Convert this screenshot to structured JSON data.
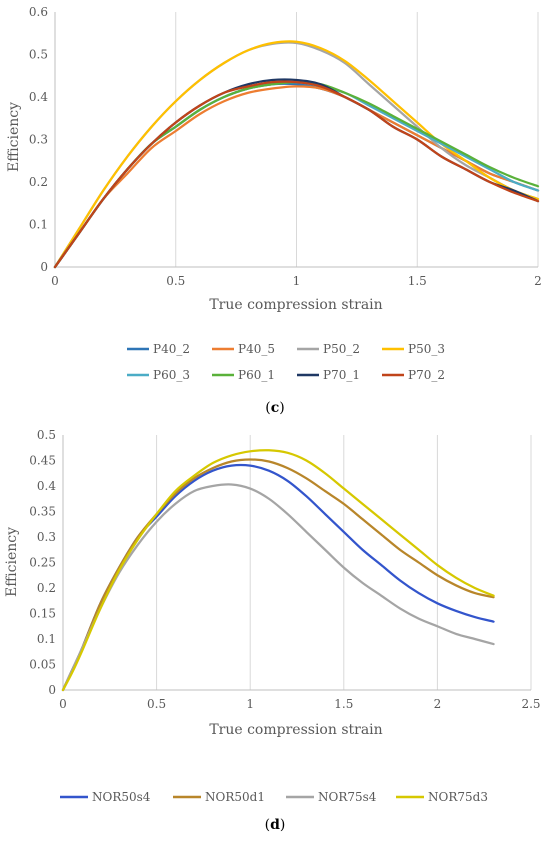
{
  "chart_data": [
    {
      "type": "line",
      "panel": "c",
      "xlabel": "True compression strain",
      "ylabel": "Efficiency",
      "xlim": [
        0,
        2
      ],
      "ylim": [
        0,
        0.6
      ],
      "xticks": [
        "0",
        "0.5",
        "1",
        "1.5",
        "2"
      ],
      "yticks": [
        "0",
        "0.1",
        "0.2",
        "0.3",
        "0.4",
        "0.5",
        "0.6"
      ],
      "grid": "vertical",
      "legend_position": "bottom",
      "x": [
        0,
        0.05,
        0.1,
        0.2,
        0.3,
        0.4,
        0.5,
        0.6,
        0.7,
        0.8,
        0.9,
        1.0,
        1.1,
        1.2,
        1.3,
        1.4,
        1.5,
        1.6,
        1.7,
        1.8,
        1.9,
        2.0
      ],
      "series": [
        {
          "name": "P40_2",
          "color": "#2E75B6",
          "values": [
            0,
            0.04,
            0.08,
            0.16,
            0.23,
            0.29,
            0.33,
            0.37,
            0.4,
            0.42,
            0.43,
            0.43,
            0.42,
            0.4,
            0.37,
            0.34,
            0.31,
            0.28,
            0.25,
            0.22,
            0.2,
            0.18
          ]
        },
        {
          "name": "P40_5",
          "color": "#ED7D31",
          "values": [
            0,
            0.04,
            0.08,
            0.16,
            0.22,
            0.28,
            0.32,
            0.36,
            0.39,
            0.41,
            0.42,
            0.425,
            0.42,
            0.4,
            0.37,
            0.34,
            0.31,
            0.28,
            0.25,
            0.22,
            0.2,
            0.18
          ]
        },
        {
          "name": "P50_2",
          "color": "#A5A5A5",
          "values": [
            0,
            0.045,
            0.09,
            0.18,
            0.26,
            0.33,
            0.39,
            0.44,
            0.48,
            0.51,
            0.525,
            0.527,
            0.51,
            0.48,
            0.43,
            0.38,
            0.33,
            0.28,
            0.24,
            0.21,
            0.18,
            0.16
          ]
        },
        {
          "name": "P50_3",
          "color": "#FFC000",
          "values": [
            0,
            0.045,
            0.09,
            0.18,
            0.26,
            0.33,
            0.39,
            0.44,
            0.48,
            0.51,
            0.527,
            0.53,
            0.515,
            0.485,
            0.44,
            0.39,
            0.34,
            0.29,
            0.25,
            0.21,
            0.18,
            0.16
          ]
        },
        {
          "name": "P60_3",
          "color": "#4BACC6",
          "values": [
            0,
            0.04,
            0.08,
            0.16,
            0.23,
            0.29,
            0.33,
            0.37,
            0.4,
            0.42,
            0.43,
            0.435,
            0.425,
            0.41,
            0.38,
            0.35,
            0.32,
            0.29,
            0.26,
            0.23,
            0.2,
            0.18
          ]
        },
        {
          "name": "P60_1",
          "color": "#5AB13A",
          "values": [
            0,
            0.04,
            0.08,
            0.16,
            0.23,
            0.29,
            0.33,
            0.37,
            0.4,
            0.42,
            0.43,
            0.435,
            0.43,
            0.41,
            0.385,
            0.355,
            0.325,
            0.295,
            0.265,
            0.235,
            0.21,
            0.19
          ]
        },
        {
          "name": "P70_1",
          "color": "#1F3864",
          "values": [
            0,
            0.04,
            0.08,
            0.16,
            0.23,
            0.29,
            0.34,
            0.38,
            0.41,
            0.43,
            0.44,
            0.44,
            0.43,
            0.4,
            0.37,
            0.33,
            0.3,
            0.26,
            0.23,
            0.2,
            0.18,
            0.155
          ]
        },
        {
          "name": "P70_2",
          "color": "#C0441A",
          "values": [
            0,
            0.04,
            0.08,
            0.16,
            0.23,
            0.29,
            0.34,
            0.38,
            0.41,
            0.425,
            0.435,
            0.435,
            0.425,
            0.4,
            0.37,
            0.33,
            0.3,
            0.26,
            0.23,
            0.2,
            0.175,
            0.155
          ]
        }
      ]
    },
    {
      "type": "line",
      "panel": "d",
      "xlabel": "True compression strain",
      "ylabel": "Efficiency",
      "xlim": [
        0,
        2.5
      ],
      "ylim": [
        0,
        0.5
      ],
      "xticks": [
        "0",
        "0.5",
        "1",
        "1.5",
        "2",
        "2.5"
      ],
      "yticks": [
        "0",
        "0.05",
        "0.1",
        "0.15",
        "0.2",
        "0.25",
        "0.3",
        "0.35",
        "0.4",
        "0.45",
        "0.5"
      ],
      "grid": "vertical",
      "legend_position": "bottom",
      "x": [
        0,
        0.05,
        0.1,
        0.2,
        0.3,
        0.4,
        0.5,
        0.6,
        0.7,
        0.8,
        0.9,
        1.0,
        1.1,
        1.2,
        1.3,
        1.4,
        1.5,
        1.6,
        1.7,
        1.8,
        1.9,
        2.0,
        2.1,
        2.2,
        2.3
      ],
      "series": [
        {
          "name": "NOR50s4",
          "color": "#3355CC",
          "values": [
            0,
            0.04,
            0.08,
            0.17,
            0.24,
            0.3,
            0.34,
            0.38,
            0.41,
            0.43,
            0.44,
            0.44,
            0.43,
            0.41,
            0.38,
            0.345,
            0.31,
            0.275,
            0.245,
            0.215,
            0.19,
            0.17,
            0.155,
            0.143,
            0.134
          ]
        },
        {
          "name": "NOR50d1",
          "color": "#B8862A",
          "values": [
            0,
            0.04,
            0.08,
            0.17,
            0.24,
            0.3,
            0.345,
            0.385,
            0.415,
            0.435,
            0.448,
            0.452,
            0.448,
            0.435,
            0.415,
            0.39,
            0.365,
            0.335,
            0.305,
            0.275,
            0.25,
            0.225,
            0.205,
            0.19,
            0.182
          ]
        },
        {
          "name": "NOR75s4",
          "color": "#A5A5A5",
          "values": [
            0,
            0.04,
            0.08,
            0.16,
            0.23,
            0.285,
            0.33,
            0.365,
            0.39,
            0.4,
            0.403,
            0.395,
            0.375,
            0.345,
            0.31,
            0.275,
            0.24,
            0.21,
            0.185,
            0.16,
            0.14,
            0.125,
            0.11,
            0.1,
            0.09
          ]
        },
        {
          "name": "NOR75d3",
          "color": "#D6C800",
          "values": [
            0,
            0.035,
            0.075,
            0.16,
            0.235,
            0.295,
            0.345,
            0.39,
            0.42,
            0.445,
            0.46,
            0.468,
            0.47,
            0.465,
            0.45,
            0.425,
            0.395,
            0.365,
            0.335,
            0.305,
            0.275,
            0.245,
            0.22,
            0.2,
            0.185
          ]
        }
      ]
    }
  ],
  "panels": {
    "c": {
      "label": "c"
    },
    "d": {
      "label": "d"
    }
  }
}
